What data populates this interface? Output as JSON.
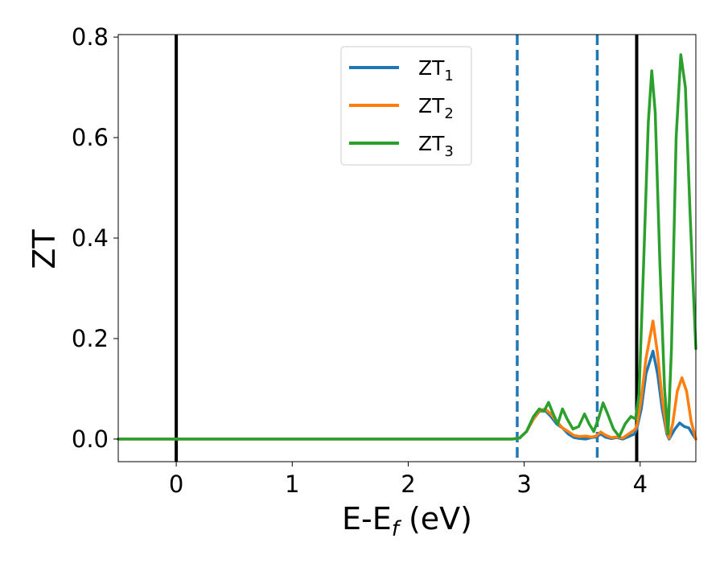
{
  "chart_data": {
    "type": "line",
    "xlabel": "E-E",
    "xlabel_sub": "f",
    "xlabel_unit": " (eV)",
    "ylabel": "ZT",
    "xlim": [
      -0.5,
      4.48
    ],
    "ylim": [
      -0.045,
      0.805
    ],
    "xticks": [
      0,
      1,
      2,
      3,
      4
    ],
    "xtick_labels": [
      "0",
      "1",
      "2",
      "3",
      "4"
    ],
    "yticks": [
      0.0,
      0.2,
      0.4,
      0.6,
      0.8
    ],
    "ytick_labels": [
      "0.0",
      "0.2",
      "0.4",
      "0.6",
      "0.8"
    ],
    "grid": false,
    "legend_position": "top-center",
    "vertical_lines": [
      {
        "x": 0.0,
        "style": "solid",
        "color": "#000000"
      },
      {
        "x": 3.97,
        "style": "solid",
        "color": "#000000"
      },
      {
        "x": 2.94,
        "style": "dashed",
        "color": "#1f77b4"
      },
      {
        "x": 3.63,
        "style": "dashed",
        "color": "#1f77b4"
      }
    ],
    "series": [
      {
        "name": "ZT",
        "name_sub": "1",
        "color": "#1f77b4",
        "points": [
          [
            -0.5,
            0
          ],
          [
            2.9,
            0
          ],
          [
            2.96,
            0.002
          ],
          [
            3.02,
            0.015
          ],
          [
            3.08,
            0.04
          ],
          [
            3.13,
            0.055
          ],
          [
            3.18,
            0.057
          ],
          [
            3.23,
            0.045
          ],
          [
            3.28,
            0.03
          ],
          [
            3.33,
            0.022
          ],
          [
            3.38,
            0.01
          ],
          [
            3.43,
            0.003
          ],
          [
            3.48,
            0.001
          ],
          [
            3.53,
            0.0
          ],
          [
            3.58,
            0.003
          ],
          [
            3.62,
            0.004
          ],
          [
            3.66,
            0.01
          ],
          [
            3.7,
            0.004
          ],
          [
            3.75,
            0.001
          ],
          [
            3.8,
            0.003
          ],
          [
            3.85,
            0.0
          ],
          [
            3.9,
            0.005
          ],
          [
            3.95,
            0.01
          ],
          [
            3.97,
            0.02
          ],
          [
            4.01,
            0.06
          ],
          [
            4.05,
            0.13
          ],
          [
            4.11,
            0.175
          ],
          [
            4.15,
            0.13
          ],
          [
            4.19,
            0.06
          ],
          [
            4.23,
            0.01
          ],
          [
            4.25,
            0.0
          ],
          [
            4.3,
            0.02
          ],
          [
            4.34,
            0.032
          ],
          [
            4.38,
            0.025
          ],
          [
            4.42,
            0.022
          ],
          [
            4.45,
            0.01
          ],
          [
            4.48,
            0.0
          ]
        ]
      },
      {
        "name": "ZT",
        "name_sub": "2",
        "color": "#ff7f0e",
        "points": [
          [
            -0.5,
            0
          ],
          [
            2.9,
            0
          ],
          [
            2.96,
            0.002
          ],
          [
            3.02,
            0.015
          ],
          [
            3.08,
            0.04
          ],
          [
            3.13,
            0.056
          ],
          [
            3.18,
            0.06
          ],
          [
            3.23,
            0.05
          ],
          [
            3.28,
            0.035
          ],
          [
            3.33,
            0.022
          ],
          [
            3.38,
            0.015
          ],
          [
            3.43,
            0.007
          ],
          [
            3.48,
            0.005
          ],
          [
            3.53,
            0.006
          ],
          [
            3.58,
            0.004
          ],
          [
            3.62,
            0.006
          ],
          [
            3.66,
            0.014
          ],
          [
            3.7,
            0.008
          ],
          [
            3.75,
            0.003
          ],
          [
            3.8,
            0.004
          ],
          [
            3.85,
            0.002
          ],
          [
            3.9,
            0.01
          ],
          [
            3.95,
            0.018
          ],
          [
            3.97,
            0.025
          ],
          [
            4.01,
            0.08
          ],
          [
            4.05,
            0.16
          ],
          [
            4.11,
            0.235
          ],
          [
            4.15,
            0.17
          ],
          [
            4.19,
            0.08
          ],
          [
            4.23,
            0.015
          ],
          [
            4.25,
            0.002
          ],
          [
            4.28,
            0.03
          ],
          [
            4.32,
            0.095
          ],
          [
            4.36,
            0.122
          ],
          [
            4.4,
            0.095
          ],
          [
            4.44,
            0.035
          ],
          [
            4.48,
            0.0
          ]
        ]
      },
      {
        "name": "ZT",
        "name_sub": "3",
        "color": "#2ca02c",
        "points": [
          [
            -0.5,
            0
          ],
          [
            2.9,
            0
          ],
          [
            2.96,
            0.002
          ],
          [
            3.02,
            0.015
          ],
          [
            3.08,
            0.045
          ],
          [
            3.13,
            0.06
          ],
          [
            3.17,
            0.055
          ],
          [
            3.21,
            0.073
          ],
          [
            3.25,
            0.05
          ],
          [
            3.29,
            0.03
          ],
          [
            3.33,
            0.06
          ],
          [
            3.37,
            0.04
          ],
          [
            3.42,
            0.02
          ],
          [
            3.47,
            0.025
          ],
          [
            3.52,
            0.05
          ],
          [
            3.56,
            0.03
          ],
          [
            3.6,
            0.015
          ],
          [
            3.64,
            0.04
          ],
          [
            3.68,
            0.072
          ],
          [
            3.72,
            0.05
          ],
          [
            3.77,
            0.02
          ],
          [
            3.82,
            0.005
          ],
          [
            3.87,
            0.03
          ],
          [
            3.92,
            0.045
          ],
          [
            3.96,
            0.04
          ],
          [
            3.99,
            0.09
          ],
          [
            4.03,
            0.35
          ],
          [
            4.07,
            0.63
          ],
          [
            4.1,
            0.733
          ],
          [
            4.13,
            0.65
          ],
          [
            4.17,
            0.35
          ],
          [
            4.21,
            0.1
          ],
          [
            4.24,
            0.01
          ],
          [
            4.27,
            0.18
          ],
          [
            4.31,
            0.6
          ],
          [
            4.35,
            0.765
          ],
          [
            4.39,
            0.7
          ],
          [
            4.43,
            0.45
          ],
          [
            4.48,
            0.18
          ]
        ]
      }
    ]
  }
}
